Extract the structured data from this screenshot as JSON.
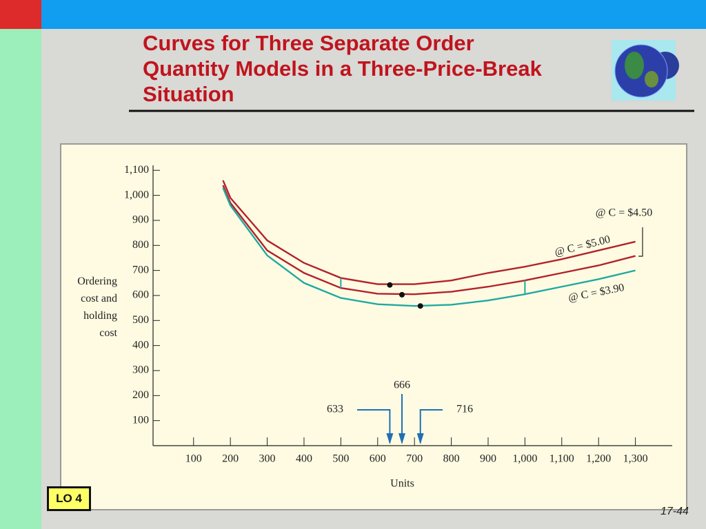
{
  "slide": {
    "title": "Curves for Three Separate Order Quantity Models in a Three-Price-Break Situation",
    "badge": "LO 4",
    "page_number": "17-44"
  },
  "chart_data": {
    "type": "line",
    "ylabel": "Ordering cost and holding cost",
    "xlabel": "Units",
    "x": [
      180,
      200,
      300,
      400,
      500,
      600,
      700,
      800,
      900,
      1000,
      1100,
      1200,
      1300
    ],
    "series": [
      {
        "name": "@ C = $5.00",
        "color": "#b3212b",
        "values": [
          1060,
          990,
          820,
          730,
          670,
          645,
          645,
          660,
          690,
          715,
          745,
          780,
          815
        ]
      },
      {
        "name": "@ C = $4.50",
        "color": "#b3212b",
        "values": [
          1040,
          970,
          780,
          690,
          630,
          607,
          605,
          615,
          635,
          660,
          690,
          720,
          758
        ]
      },
      {
        "name": "@ C = $3.90",
        "color": "#1fa9a0",
        "values": [
          1030,
          960,
          760,
          650,
          590,
          565,
          558,
          563,
          580,
          605,
          635,
          665,
          700
        ]
      }
    ],
    "optimum_points": [
      {
        "x": 633,
        "y": 642
      },
      {
        "x": 666,
        "y": 603
      },
      {
        "x": 716,
        "y": 558
      }
    ],
    "price_breaks": [
      500,
      1000
    ],
    "xlim": [
      -10,
      1400
    ],
    "ylim": [
      0,
      1120
    ],
    "xticks": [
      100,
      200,
      300,
      400,
      500,
      600,
      700,
      800,
      900,
      {
        "value": 1000,
        "label": "1,000"
      },
      {
        "value": 1100,
        "label": "1,100"
      },
      {
        "value": 1200,
        "label": "1,200"
      },
      {
        "value": 1300,
        "label": "1,300"
      }
    ],
    "yticks": [
      100,
      200,
      300,
      400,
      500,
      600,
      700,
      800,
      900,
      {
        "value": 1000,
        "label": "1,000"
      },
      {
        "value": 1100,
        "label": "1,100"
      }
    ]
  }
}
